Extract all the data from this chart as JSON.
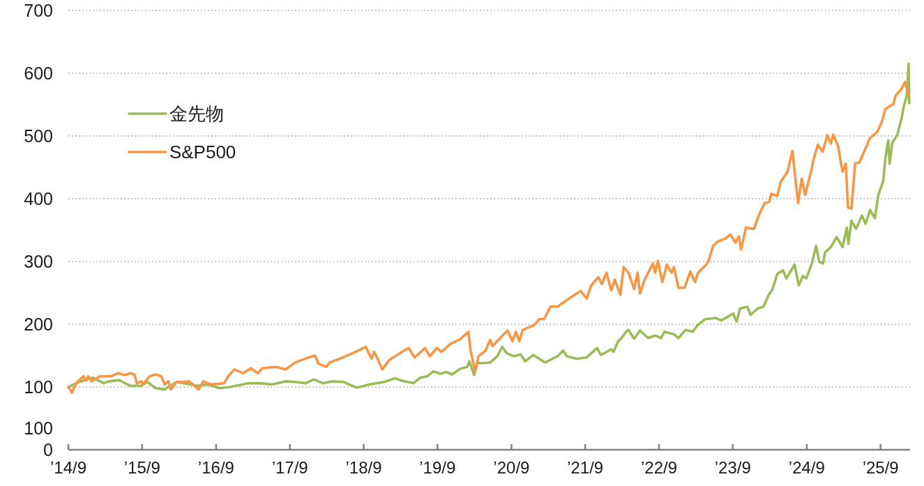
{
  "chart_data": {
    "type": "line",
    "xlim": [
      "2014-09-01",
      "2026-01-25"
    ],
    "ylim": [
      0,
      700
    ],
    "xticks": [
      {
        "value": "2014-09",
        "label": "’14/9"
      },
      {
        "value": "2015-09",
        "label": "’15/9"
      },
      {
        "value": "2016-09",
        "label": "’16/9"
      },
      {
        "value": "2017-09",
        "label": "’17/9"
      },
      {
        "value": "2018-09",
        "label": "’18/9"
      },
      {
        "value": "2019-09",
        "label": "’19/9"
      },
      {
        "value": "2020-09",
        "label": "’20/9"
      },
      {
        "value": "2021-09",
        "label": "’21/9"
      },
      {
        "value": "2022-09",
        "label": "’22/9"
      },
      {
        "value": "2023-09",
        "label": "’23/9"
      },
      {
        "value": "2024-09",
        "label": "’24/9"
      },
      {
        "value": "2025-09",
        "label": "’25/9"
      }
    ],
    "yticks": [
      {
        "value": 0,
        "label": "100\n0"
      },
      100,
      200,
      300,
      400,
      500,
      600,
      700
    ],
    "grid": "y",
    "legend": "top left",
    "line_style": "solid",
    "series": [
      {
        "name": "金先物",
        "color": "#9bbb59",
        "x": [
          "2014-09-01",
          "2014-10-23",
          "2015-01-01",
          "2015-02-22",
          "2015-03-21",
          "2015-05-11",
          "2015-07-02",
          "2015-08-29",
          "2015-09-27",
          "2015-11-07",
          "2015-12-22",
          "2016-02-19",
          "2016-06-01",
          "2016-07-22",
          "2016-09-18",
          "2016-11-09",
          "2017-02-09",
          "2017-04-07",
          "2017-06-03",
          "2017-08-11",
          "2017-09-27",
          "2017-11-18",
          "2017-12-28",
          "2018-02-12",
          "2018-03-28",
          "2018-05-25",
          "2018-07-27",
          "2018-09-29",
          "2018-12-13",
          "2019-02-04",
          "2019-03-08",
          "2019-05-05",
          "2019-06-09",
          "2019-07-13",
          "2019-08-11",
          "2019-09-15",
          "2019-10-14",
          "2019-11-12",
          "2019-12-22",
          "2020-01-26",
          "2020-02-06",
          "2020-02-29",
          "2020-03-17",
          "2020-04-15",
          "2020-05-19",
          "2020-06-23",
          "2020-07-18",
          "2020-08-08",
          "2020-09-12",
          "2020-10-16",
          "2020-11-08",
          "2020-12-18",
          "2021-02-15",
          "2021-04-17",
          "2021-05-15",
          "2021-06-02",
          "2021-07-23",
          "2021-09-08",
          "2021-10-30",
          "2021-11-17",
          "2022-01-08",
          "2022-01-19",
          "2022-02-11",
          "2022-02-28",
          "2022-03-22",
          "2022-04-03",
          "2022-05-01",
          "2022-05-30",
          "2022-07-09",
          "2022-08-13",
          "2022-09-11",
          "2022-09-28",
          "2022-11-14",
          "2022-12-06",
          "2023-01-11",
          "2023-02-14",
          "2023-03-13",
          "2023-04-17",
          "2023-06-08",
          "2023-07-06",
          "2023-09-03",
          "2023-09-20",
          "2023-10-07",
          "2023-11-11",
          "2023-11-28",
          "2024-01-02",
          "2024-01-31",
          "2024-02-23",
          "2024-03-16",
          "2024-04-08",
          "2024-05-06",
          "2024-05-23",
          "2024-07-03",
          "2024-07-23",
          "2024-08-13",
          "2024-08-30",
          "2024-09-28",
          "2024-10-17",
          "2024-11-02",
          "2024-11-21",
          "2024-11-30",
          "2024-12-29",
          "2025-01-27",
          "2025-02-25",
          "2025-03-18",
          "2025-03-26",
          "2025-04-10",
          "2025-05-03",
          "2025-06-01",
          "2025-06-19",
          "2025-07-11",
          "2025-08-04",
          "2025-08-21",
          "2025-09-14",
          "2025-09-25",
          "2025-10-09",
          "2025-10-16",
          "2025-10-29",
          "2025-11-22",
          "2025-12-14",
          "2025-12-26",
          "2026-01-09",
          "2026-01-18",
          "2026-01-21"
        ],
        "values": [
          100,
          108,
          115,
          106,
          109,
          111,
          102,
          102,
          108,
          98,
          96,
          108,
          102,
          104,
          98,
          100,
          106,
          106,
          104,
          109,
          108,
          106,
          112,
          106,
          109,
          108,
          99,
          104,
          108,
          114,
          110,
          106,
          115,
          117,
          125,
          121,
          124,
          120,
          129,
          132,
          141,
          119,
          138,
          138,
          139,
          149,
          164,
          154,
          149,
          152,
          141,
          151,
          139,
          149,
          158,
          149,
          145,
          147,
          162,
          151,
          160,
          156,
          173,
          178,
          188,
          191,
          177,
          190,
          178,
          182,
          178,
          188,
          184,
          178,
          191,
          188,
          199,
          208,
          210,
          206,
          217,
          204,
          225,
          228,
          215,
          225,
          228,
          245,
          256,
          280,
          286,
          273,
          295,
          262,
          277,
          273,
          299,
          325,
          299,
          297,
          314,
          323,
          339,
          323,
          354,
          328,
          365,
          352,
          373,
          360,
          382,
          369,
          406,
          428,
          465,
          493,
          456,
          489,
          501,
          528,
          549,
          564,
          615,
          552
        ]
      },
      {
        "name": "S&P500",
        "color": "#f79646",
        "x": [
          "2014-09-01",
          "2014-09-19",
          "2014-10-12",
          "2014-11-15",
          "2014-11-27",
          "2014-12-08",
          "2014-12-25",
          "2015-02-04",
          "2015-04-01",
          "2015-05-05",
          "2015-06-09",
          "2015-07-02",
          "2015-07-25",
          "2015-08-06",
          "2015-08-29",
          "2015-09-04",
          "2015-10-08",
          "2015-11-07",
          "2015-12-05",
          "2015-12-22",
          "2016-01-09",
          "2016-01-21",
          "2016-02-19",
          "2016-03-23",
          "2016-04-21",
          "2016-06-06",
          "2016-06-29",
          "2016-08-09",
          "2016-10-11",
          "2016-11-04",
          "2016-12-02",
          "2017-01-12",
          "2017-02-20",
          "2017-03-26",
          "2017-04-18",
          "2017-06-26",
          "2017-08-11",
          "2017-09-27",
          "2017-11-23",
          "2018-01-03",
          "2018-01-20",
          "2018-02-28",
          "2018-03-17",
          "2018-05-13",
          "2018-07-10",
          "2018-09-12",
          "2018-10-10",
          "2018-10-22",
          "2018-11-09",
          "2018-12-02",
          "2019-01-06",
          "2019-03-20",
          "2019-04-12",
          "2019-05-11",
          "2019-07-02",
          "2019-07-25",
          "2019-08-29",
          "2019-09-21",
          "2019-11-06",
          "2019-12-22",
          "2020-02-01",
          "2020-02-12",
          "2020-03-05",
          "2020-03-22",
          "2020-04-26",
          "2020-05-19",
          "2020-05-31",
          "2020-07-04",
          "2020-08-13",
          "2020-09-06",
          "2020-09-23",
          "2020-10-10",
          "2020-10-27",
          "2020-12-24",
          "2021-01-16",
          "2021-02-09",
          "2021-03-13",
          "2021-04-17",
          "2021-06-14",
          "2021-08-10",
          "2021-09-08",
          "2021-10-01",
          "2021-11-05",
          "2021-11-22",
          "2021-12-15",
          "2022-01-08",
          "2022-01-25",
          "2022-02-22",
          "2022-03-10",
          "2022-04-03",
          "2022-05-01",
          "2022-05-18",
          "2022-05-30",
          "2022-06-22",
          "2022-08-02",
          "2022-08-13",
          "2022-08-27",
          "2022-09-17",
          "2022-10-10",
          "2022-11-02",
          "2022-11-14",
          "2022-12-06",
          "2023-01-05",
          "2023-02-03",
          "2023-02-26",
          "2023-03-13",
          "2023-04-23",
          "2023-05-04",
          "2023-05-27",
          "2023-06-19",
          "2023-07-23",
          "2023-08-21",
          "2023-09-14",
          "2023-10-01",
          "2023-10-12",
          "2023-11-05",
          "2023-12-15",
          "2024-01-07",
          "2024-02-05",
          "2024-02-28",
          "2024-03-10",
          "2024-04-08",
          "2024-04-25",
          "2024-05-29",
          "2024-06-22",
          "2024-07-20",
          "2024-08-07",
          "2024-08-24",
          "2024-09-22",
          "2024-10-04",
          "2024-10-26",
          "2024-11-19",
          "2024-12-12",
          "2024-12-29",
          "2025-01-10",
          "2025-02-03",
          "2025-02-25",
          "2025-03-13",
          "2025-03-24",
          "2025-04-10",
          "2025-04-28",
          "2025-05-20",
          "2025-06-13",
          "2025-07-11",
          "2025-08-15",
          "2025-09-08",
          "2025-09-25",
          "2025-11-04",
          "2025-11-16",
          "2025-12-14",
          "2025-12-31",
          "2026-01-18"
        ],
        "values": [
          100,
          91,
          107,
          117,
          110,
          117,
          109,
          117,
          117,
          122,
          119,
          122,
          120,
          106,
          109,
          104,
          117,
          120,
          117,
          104,
          109,
          96,
          108,
          108,
          109,
          96,
          109,
          104,
          106,
          119,
          128,
          122,
          130,
          122,
          130,
          132,
          128,
          139,
          146,
          150,
          137,
          132,
          139,
          146,
          154,
          164,
          145,
          156,
          145,
          128,
          143,
          158,
          162,
          147,
          162,
          149,
          162,
          156,
          169,
          176,
          188,
          158,
          125,
          149,
          158,
          175,
          165,
          177,
          190,
          173,
          188,
          173,
          191,
          199,
          208,
          208,
          228,
          228,
          241,
          253,
          241,
          262,
          275,
          264,
          282,
          254,
          271,
          247,
          291,
          282,
          256,
          282,
          249,
          271,
          297,
          282,
          301,
          267,
          295,
          282,
          291,
          258,
          258,
          284,
          267,
          282,
          295,
          301,
          325,
          332,
          336,
          343,
          330,
          340,
          319,
          354,
          352,
          373,
          393,
          395,
          408,
          404,
          427,
          443,
          476,
          393,
          432,
          406,
          443,
          462,
          486,
          475,
          501,
          488,
          502,
          484,
          443,
          456,
          386,
          384,
          456,
          458,
          476,
          497,
          506,
          523,
          543,
          551,
          565,
          575,
          586,
          565
        ]
      }
    ]
  }
}
